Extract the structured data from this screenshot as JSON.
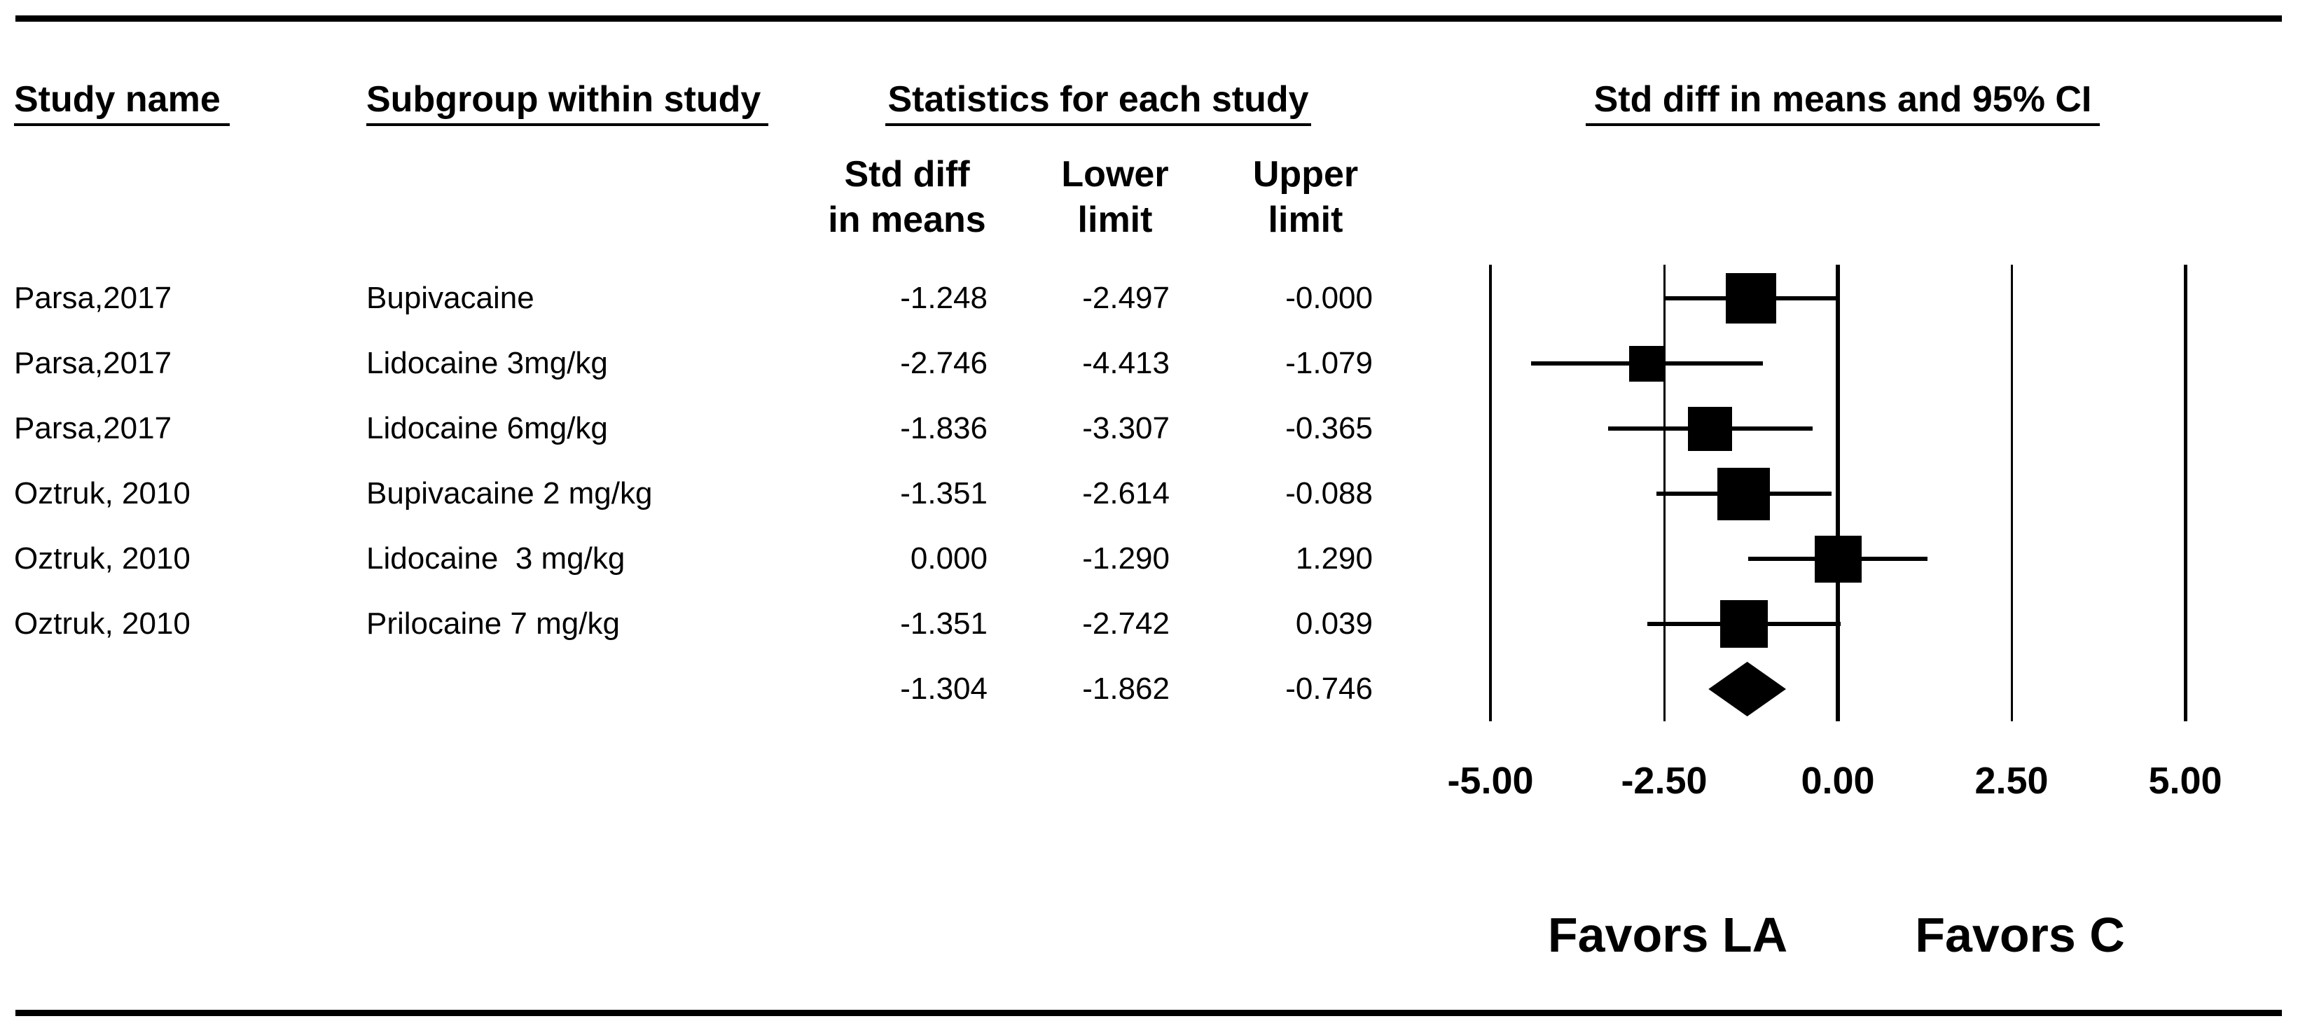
{
  "figure": {
    "headers": {
      "study": "Study name",
      "subgroup": "Subgroup within study",
      "stats": "Statistics for each study",
      "plot": "Std diff in means and 95% CI"
    },
    "stat_subheaders": [
      [
        "Std diff",
        "in means"
      ],
      [
        "Lower",
        "limit"
      ],
      [
        "Upper",
        "limit"
      ]
    ]
  },
  "chart_data": {
    "type": "forest",
    "title": "Std diff in means and 95% CI",
    "effect_measure": "Std diff in means",
    "xlim": [
      -5,
      5
    ],
    "x_ticks": [
      {
        "label": "-5.00",
        "value": -5.0
      },
      {
        "label": "-2.50",
        "value": -2.5
      },
      {
        "label": "0.00",
        "value": 0.0
      },
      {
        "label": "2.50",
        "value": 2.5
      },
      {
        "label": "5.00",
        "value": 5.0
      }
    ],
    "studies": [
      {
        "study": "Parsa,2017",
        "subgroup": "Bupivacaine",
        "std_diff": "-1.248",
        "lower": "-2.497",
        "upper": "-0.000",
        "box_size": 72
      },
      {
        "study": "Parsa,2017",
        "subgroup": "Lidocaine 3mg/kg",
        "std_diff": "-2.746",
        "lower": "-4.413",
        "upper": "-1.079",
        "box_size": 51
      },
      {
        "study": "Parsa,2017",
        "subgroup": "Lidocaine 6mg/kg",
        "std_diff": "-1.836",
        "lower": "-3.307",
        "upper": "-0.365",
        "box_size": 63
      },
      {
        "study": "Oztruk, 2010",
        "subgroup": "Bupivacaine 2 mg/kg",
        "std_diff": "-1.351",
        "lower": "-2.614",
        "upper": "-0.088",
        "box_size": 75
      },
      {
        "study": "Oztruk, 2010",
        "subgroup": "Lidocaine  3 mg/kg",
        "std_diff": "0.000",
        "lower": "-1.290",
        "upper": "1.290",
        "box_size": 67
      },
      {
        "study": "Oztruk, 2010",
        "subgroup": "Prilocaine 7 mg/kg",
        "std_diff": "-1.351",
        "lower": "-2.742",
        "upper": "0.039",
        "box_size": 68
      }
    ],
    "summary": {
      "std_diff": "-1.304",
      "lower": "-1.862",
      "upper": "-0.746"
    },
    "favors": {
      "left": "Favors LA",
      "right": "Favors C"
    }
  }
}
